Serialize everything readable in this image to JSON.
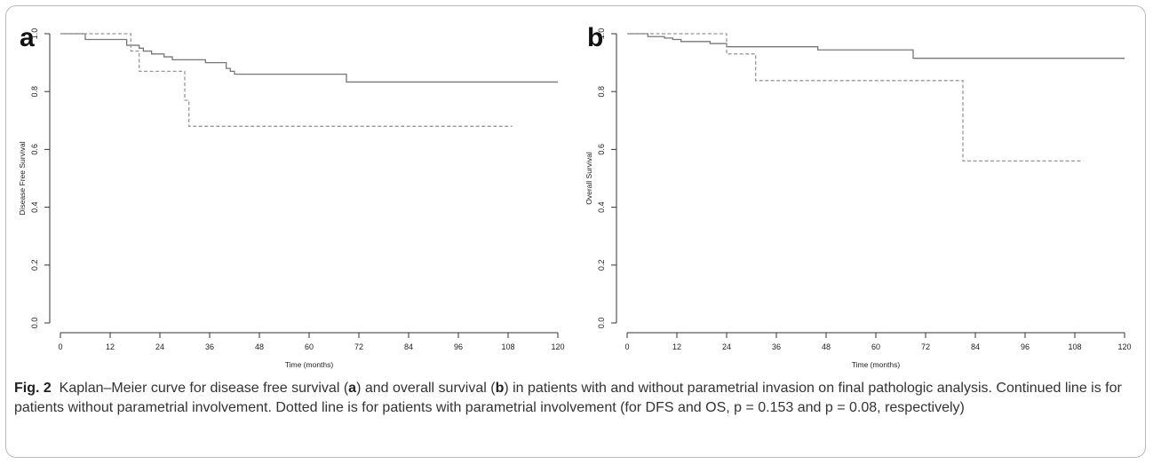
{
  "chart_data": [
    {
      "panel": "a",
      "type": "line",
      "title": "",
      "xlabel": "Time (months)",
      "ylabel": "Disease Free Survival",
      "xlim": [
        0,
        120
      ],
      "ylim": [
        0,
        1
      ],
      "xticks": [
        0,
        12,
        24,
        36,
        48,
        60,
        72,
        84,
        96,
        108,
        120
      ],
      "yticks": [
        "0.0",
        "0.2",
        "0.4",
        "0.6",
        "0.8",
        "1.0"
      ],
      "grid": false,
      "series": [
        {
          "style": "solid",
          "color": "#777777",
          "steps": [
            [
              0,
              1.0
            ],
            [
              6,
              0.98
            ],
            [
              16,
              0.96
            ],
            [
              19,
              0.95
            ],
            [
              20,
              0.94
            ],
            [
              22,
              0.93
            ],
            [
              25,
              0.92
            ],
            [
              27,
              0.91
            ],
            [
              35,
              0.9
            ],
            [
              40,
              0.88
            ],
            [
              41,
              0.87
            ],
            [
              42,
              0.86
            ],
            [
              69,
              0.833
            ],
            [
              120,
              0.833
            ]
          ]
        },
        {
          "style": "dashed",
          "color": "#999999",
          "steps": [
            [
              0,
              1.0
            ],
            [
              17,
              0.94
            ],
            [
              19,
              0.87
            ],
            [
              30,
              0.77
            ],
            [
              31,
              0.68
            ],
            [
              109,
              0.68
            ]
          ]
        }
      ]
    },
    {
      "panel": "b",
      "type": "line",
      "title": "",
      "xlabel": "Time (months)",
      "ylabel": "Overall Survival",
      "xlim": [
        0,
        120
      ],
      "ylim": [
        0,
        1
      ],
      "xticks": [
        0,
        12,
        24,
        36,
        48,
        60,
        72,
        84,
        96,
        108,
        120
      ],
      "yticks": [
        "0.0",
        "0.2",
        "0.4",
        "0.6",
        "0.8",
        "1.0"
      ],
      "grid": false,
      "series": [
        {
          "style": "solid",
          "color": "#777777",
          "steps": [
            [
              0,
              1.0
            ],
            [
              5,
              0.99
            ],
            [
              9,
              0.985
            ],
            [
              11,
              0.98
            ],
            [
              13,
              0.973
            ],
            [
              20,
              0.966
            ],
            [
              24,
              0.955
            ],
            [
              46,
              0.944
            ],
            [
              69,
              0.915
            ],
            [
              120,
              0.915
            ]
          ]
        },
        {
          "style": "dashed",
          "color": "#999999",
          "steps": [
            [
              0,
              1.0
            ],
            [
              24,
              0.93
            ],
            [
              31,
              0.838
            ],
            [
              81,
              0.56
            ],
            [
              110,
              0.56
            ]
          ]
        }
      ]
    }
  ],
  "caption": {
    "label": "Fig. 2",
    "text_1": "Kaplan–Meier curve for disease free survival (",
    "panel_a": "a",
    "text_2": ") and overall survival (",
    "panel_b": "b",
    "text_3": ") in patients with and without parametrial invasion on final pathologic analysis. Continued line is for patients without parametrial involvement. Dotted line is for patients with parametrial involvement (for DFS and OS, p = 0.153 and p = 0.08, respectively)"
  }
}
